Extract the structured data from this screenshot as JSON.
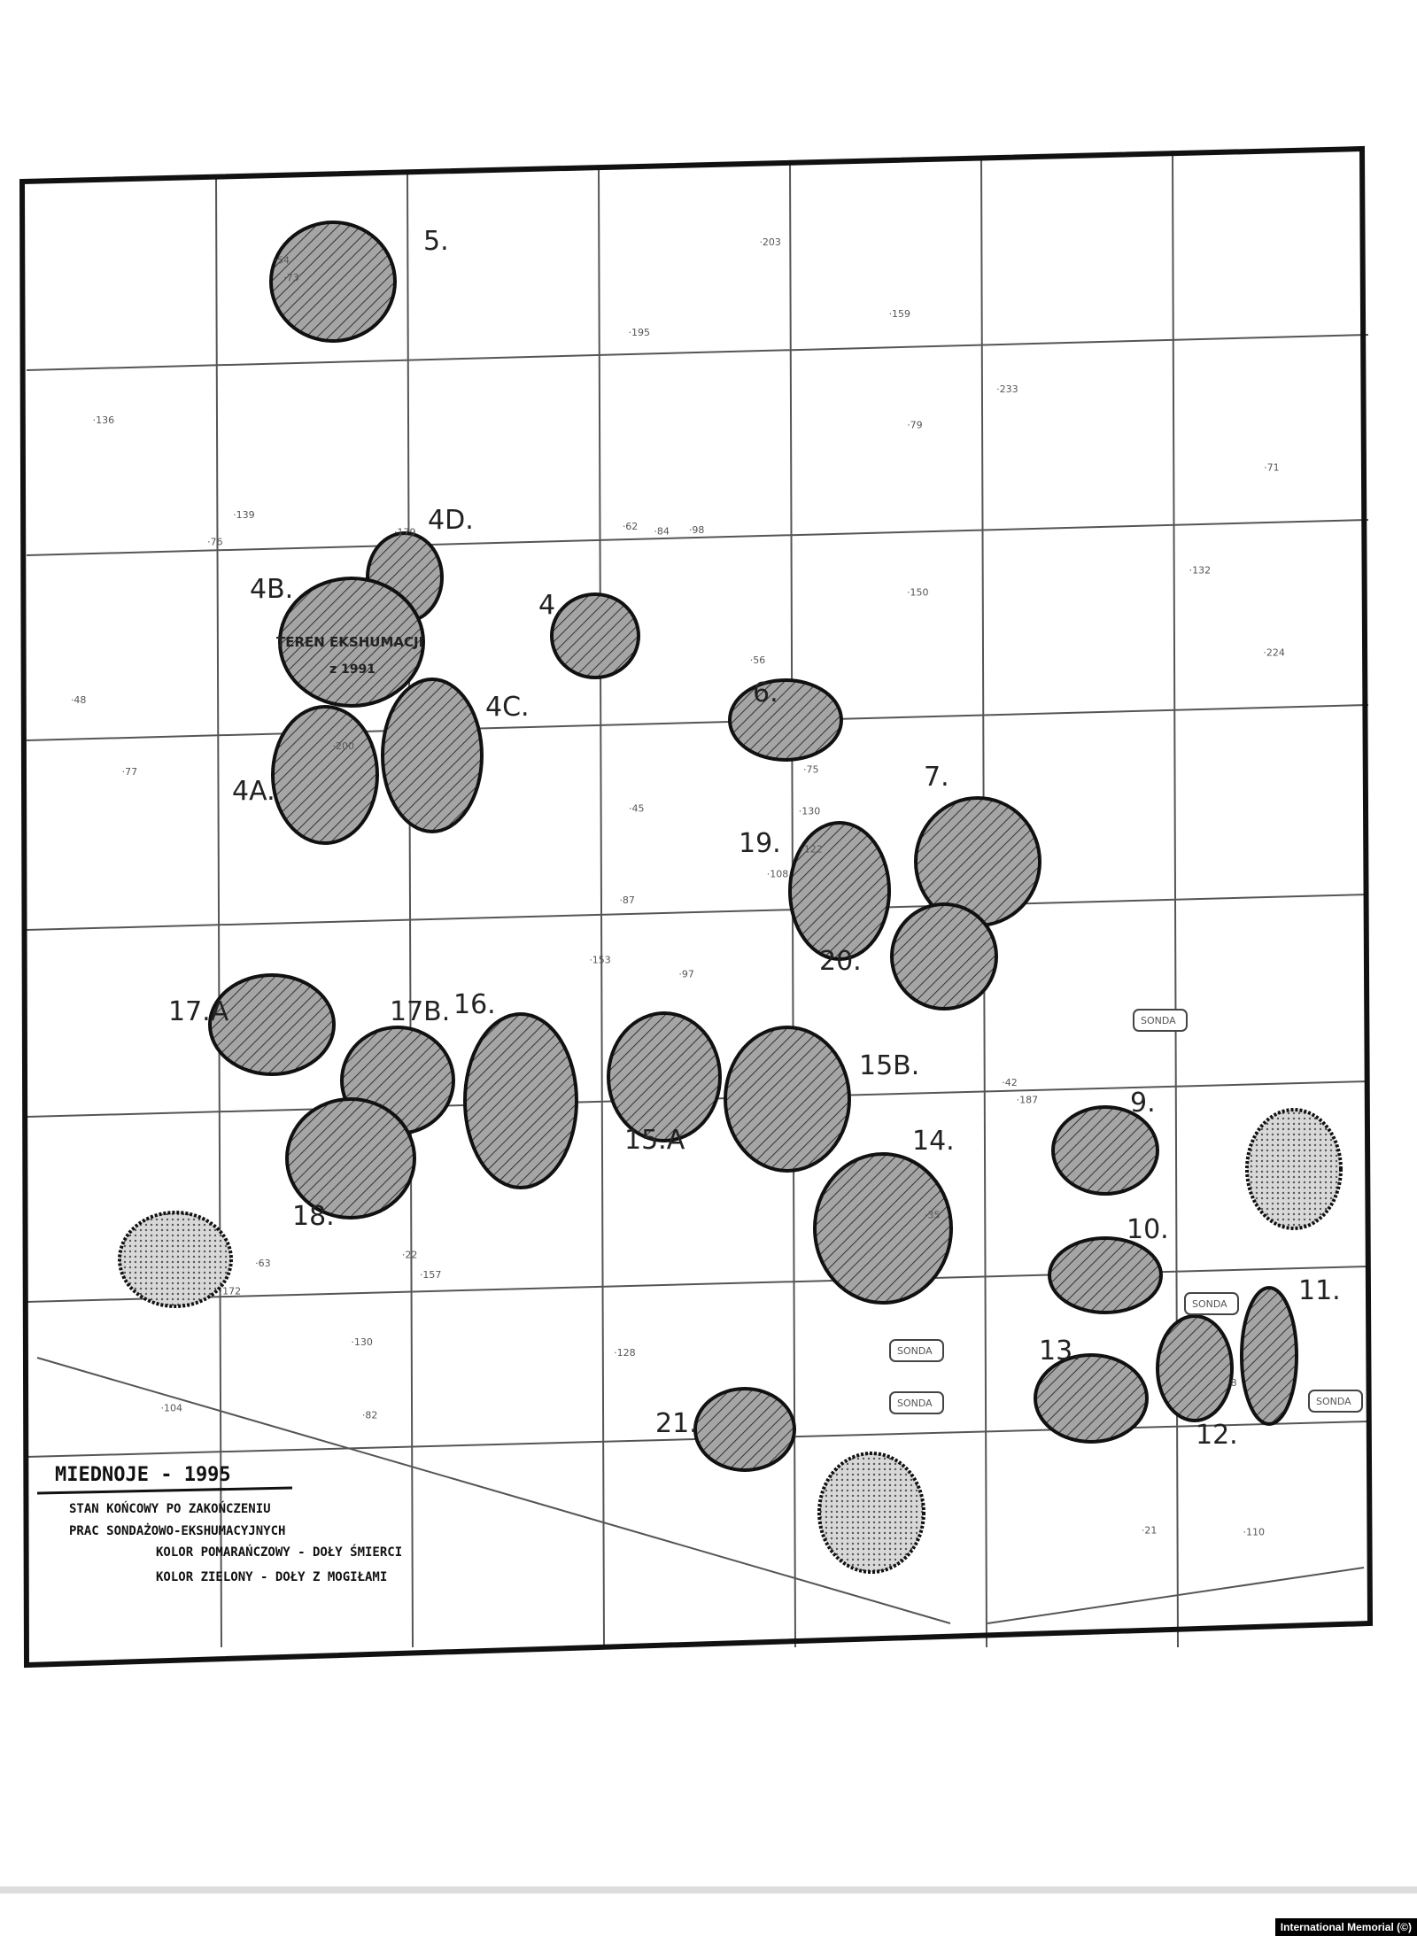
{
  "map": {
    "pits": [
      {
        "id": "5",
        "label": "5.",
        "type": "hatched"
      },
      {
        "id": "4D",
        "label": "4D.",
        "type": "hatched"
      },
      {
        "id": "4B",
        "label": "4B.",
        "type": "hatched"
      },
      {
        "id": "4",
        "label": "4.",
        "type": "hatched"
      },
      {
        "id": "4C",
        "label": "4C.",
        "type": "hatched"
      },
      {
        "id": "4A",
        "label": "4A.",
        "type": "hatched"
      },
      {
        "id": "6",
        "label": "6.",
        "type": "hatched"
      },
      {
        "id": "7",
        "label": "7.",
        "type": "hatched"
      },
      {
        "id": "19",
        "label": "19.",
        "type": "hatched"
      },
      {
        "id": "20",
        "label": "20.",
        "type": "hatched"
      },
      {
        "id": "17A",
        "label": "17.A",
        "type": "hatched"
      },
      {
        "id": "17B",
        "label": "17B.",
        "type": "hatched"
      },
      {
        "id": "16",
        "label": "16.",
        "type": "hatched"
      },
      {
        "id": "15A",
        "label": "15.A",
        "type": "hatched"
      },
      {
        "id": "15B",
        "label": "15B.",
        "type": "hatched"
      },
      {
        "id": "18",
        "label": "18.",
        "type": "hatched"
      },
      {
        "id": "14",
        "label": "14.",
        "type": "hatched"
      },
      {
        "id": "9",
        "label": "9.",
        "type": "hatched"
      },
      {
        "id": "10",
        "label": "10.",
        "type": "hatched"
      },
      {
        "id": "11",
        "label": "11.",
        "type": "hatched"
      },
      {
        "id": "12",
        "label": "12.",
        "type": "hatched"
      },
      {
        "id": "13",
        "label": "13.",
        "type": "hatched"
      },
      {
        "id": "21",
        "label": "21.",
        "type": "hatched"
      },
      {
        "id": "d1",
        "label": "",
        "type": "dotted"
      },
      {
        "id": "d2",
        "label": "",
        "type": "dotted"
      },
      {
        "id": "d3",
        "label": "",
        "type": "dotted"
      }
    ],
    "annotations": [
      "TEREN EKSHUMACJI",
      "z 1991"
    ],
    "sonda_label": "SONDA",
    "spot_heights": [
      "97",
      "76",
      "87",
      "104",
      "75",
      "157",
      "159",
      "98",
      "79",
      "108",
      "73",
      "110",
      "71",
      "153",
      "150",
      "62",
      "56",
      "63",
      "82",
      "84",
      "187",
      "139",
      "195",
      "77",
      "224",
      "128",
      "45",
      "179",
      "233",
      "22",
      "21",
      "8",
      "42",
      "203",
      "200",
      "35",
      "48",
      "130",
      "122",
      "172",
      "132",
      "136",
      "130",
      "54"
    ]
  },
  "legend": {
    "title": "MIEDNOJE - 1995",
    "lines": [
      "STAN KOŃCOWY PO ZAKOŃCZENIU",
      "PRAC SONDAŻOWO-EKSHUMACYJNYCH",
      "KOLOR POMARAŃCZOWY - DOŁY ŚMIERCI",
      "KOLOR ZIELONY - DOŁY Z MOGIŁAMI"
    ]
  },
  "credit": "International Memorial (©)",
  "colors": {
    "ink": "#1a1a1a",
    "pit_fill": "#9a9a9a",
    "paper": "#ffffff"
  }
}
